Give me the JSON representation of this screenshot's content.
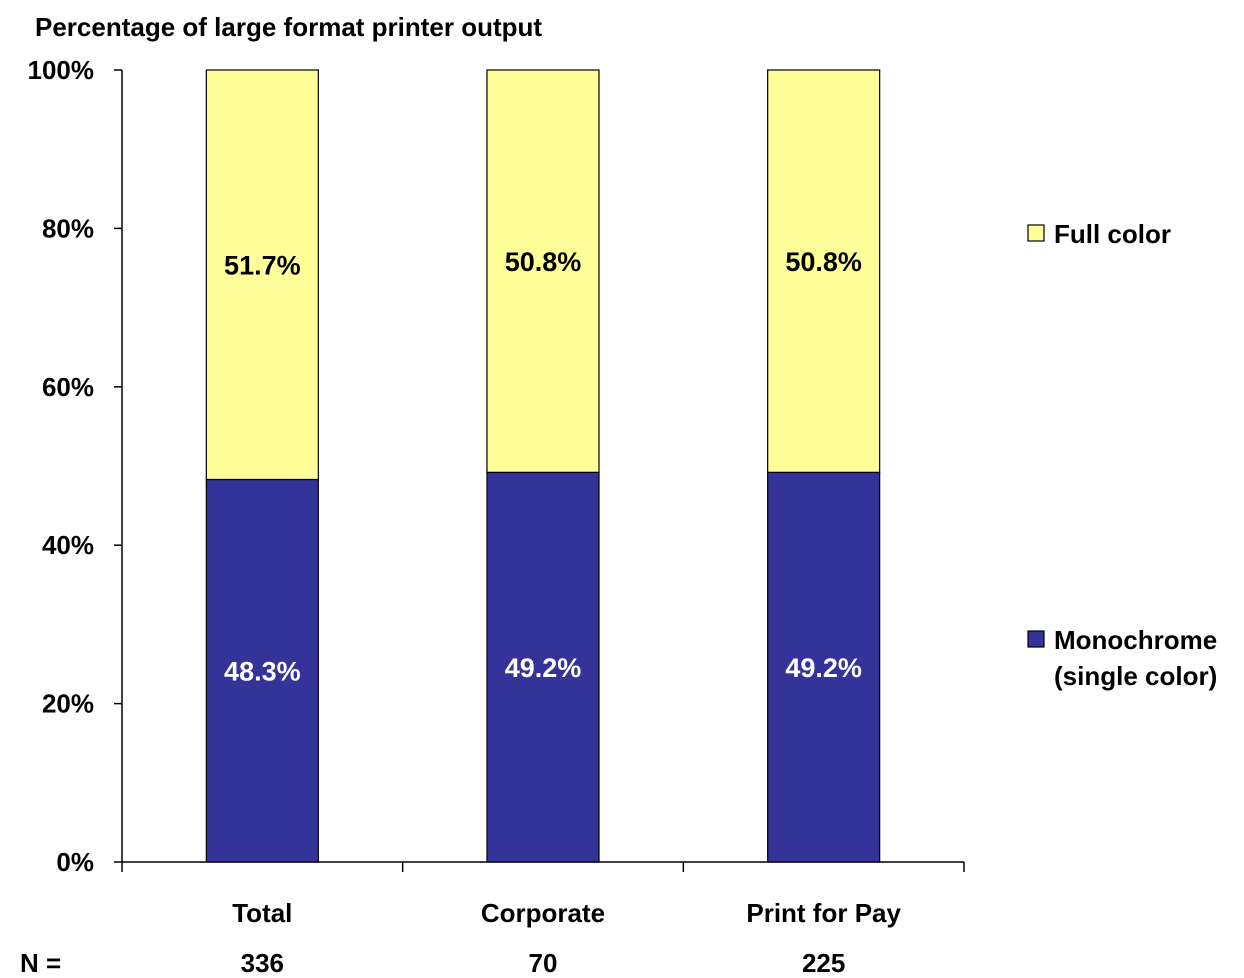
{
  "chart_data": {
    "type": "bar",
    "stacked": true,
    "percent": true,
    "title": "Percentage of large format printer output",
    "xlabel": "",
    "ylabel": "",
    "ylim": [
      0,
      100
    ],
    "yticks": [
      "0%",
      "20%",
      "40%",
      "60%",
      "80%",
      "100%"
    ],
    "categories": [
      "Total",
      "Corporate",
      "Print for Pay"
    ],
    "n_label": "N =",
    "n_values": [
      "336",
      "70",
      "225"
    ],
    "series": [
      {
        "name": "Monochrome (single color)",
        "name_lines": [
          "Monochrome",
          "(single color)"
        ],
        "values": [
          48.3,
          49.2,
          49.2
        ],
        "labels": [
          "48.3%",
          "49.2%",
          "49.2%"
        ],
        "color": "#333399",
        "label_color": "#ffffff"
      },
      {
        "name": "Full color",
        "name_lines": [
          "Full color"
        ],
        "values": [
          51.7,
          50.8,
          50.8
        ],
        "labels": [
          "51.7%",
          "50.8%",
          "50.8%"
        ],
        "color": "#ffff99",
        "label_color": "#000000"
      }
    ],
    "grid": false,
    "legend_position": "right"
  }
}
